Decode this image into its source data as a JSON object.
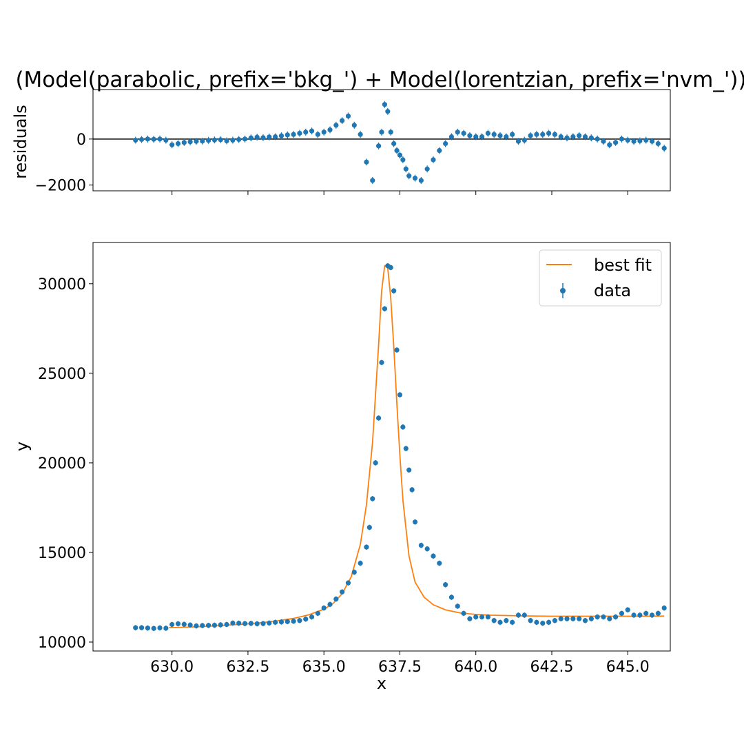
{
  "title": "(Model(parabolic, prefix='bkg_') + Model(lorentzian, prefix='nvm_'))",
  "colors": {
    "data": "#1f77b4",
    "fit": "#ff7f0e",
    "axis": "#000000"
  },
  "chart_data": [
    {
      "type": "scatter",
      "ylabel": "residuals",
      "xlim": [
        627.4,
        646.4
      ],
      "ylim": [
        -2250,
        2150
      ],
      "yticks": [
        -2000,
        0
      ],
      "ytick_labels": [
        "−2000",
        "0"
      ],
      "xticks": [
        630.0,
        632.5,
        635.0,
        637.5,
        640.0,
        642.5,
        645.0
      ],
      "xtick_labels_visible": false,
      "zero_line": 0,
      "series": [
        {
          "x": [
            628.8,
            629.0,
            629.2,
            629.4,
            629.6,
            629.8,
            630.0,
            630.2,
            630.4,
            630.6,
            630.8,
            631.0,
            631.2,
            631.4,
            631.6,
            631.8,
            632.0,
            632.2,
            632.4,
            632.6,
            632.8,
            633.0,
            633.2,
            633.4,
            633.6,
            633.8,
            634.0,
            634.2,
            634.4,
            634.6,
            634.8,
            635.0,
            635.2,
            635.4,
            635.6,
            635.8,
            636.0,
            636.2,
            636.4,
            636.6,
            636.8,
            636.9,
            637.0,
            637.1,
            637.2,
            637.3,
            637.4,
            637.5,
            637.6,
            637.7,
            637.8,
            638.0,
            638.2,
            638.4,
            638.6,
            638.8,
            639.0,
            639.2,
            639.4,
            639.6,
            639.8,
            640.0,
            640.2,
            640.4,
            640.6,
            640.8,
            641.0,
            641.2,
            641.4,
            641.6,
            641.8,
            642.0,
            642.2,
            642.4,
            642.6,
            642.8,
            643.0,
            643.2,
            643.4,
            643.6,
            643.8,
            644.0,
            644.2,
            644.4,
            644.6,
            644.8,
            645.0,
            645.2,
            645.4,
            645.6,
            645.8,
            646.0,
            646.2
          ],
          "y": [
            -50,
            -20,
            0,
            -10,
            0,
            -50,
            -250,
            -200,
            -150,
            -120,
            -100,
            -90,
            -60,
            -40,
            -30,
            -80,
            -50,
            -20,
            0,
            50,
            80,
            60,
            90,
            100,
            140,
            180,
            200,
            250,
            300,
            350,
            200,
            300,
            400,
            600,
            800,
            1000,
            600,
            200,
            -1000,
            -1800,
            -300,
            300,
            1500,
            1200,
            300,
            -200,
            -500,
            -700,
            -900,
            -1300,
            -1600,
            -1700,
            -1800,
            -1300,
            -900,
            -500,
            -200,
            100,
            300,
            250,
            150,
            100,
            100,
            250,
            200,
            150,
            100,
            200,
            -100,
            -50,
            150,
            200,
            200,
            250,
            200,
            100,
            50,
            100,
            150,
            100,
            50,
            0,
            -100,
            -250,
            -150,
            0,
            -50,
            -100,
            -80,
            -50,
            -100,
            -200,
            -400
          ]
        }
      ]
    },
    {
      "type": "scatter",
      "xlabel": "x",
      "ylabel": "y",
      "xlim": [
        627.4,
        646.4
      ],
      "ylim": [
        9500,
        32300
      ],
      "xticks": [
        630.0,
        632.5,
        635.0,
        637.5,
        640.0,
        642.5,
        645.0
      ],
      "xtick_labels": [
        "630.0",
        "632.5",
        "635.0",
        "637.5",
        "640.0",
        "642.5",
        "645.0"
      ],
      "yticks": [
        10000,
        15000,
        20000,
        25000,
        30000
      ],
      "ytick_labels": [
        "10000",
        "15000",
        "20000",
        "25000",
        "30000"
      ],
      "legend_position": "top-right",
      "legend": [
        {
          "label": "best fit",
          "kind": "line"
        },
        {
          "label": "data",
          "kind": "errorbar"
        }
      ],
      "series": [
        {
          "name": "best fit",
          "kind": "line",
          "x": [
            629.9,
            630.5,
            631.0,
            631.5,
            632.0,
            632.5,
            633.0,
            633.5,
            634.0,
            634.5,
            635.0,
            635.3,
            635.6,
            635.9,
            636.2,
            636.4,
            636.6,
            636.8,
            636.9,
            637.0,
            637.1,
            637.2,
            637.3,
            637.4,
            637.5,
            637.6,
            637.8,
            638.0,
            638.3,
            638.6,
            639.0,
            639.5,
            640.0,
            640.5,
            641.0,
            641.5,
            642.0,
            642.5,
            643.0,
            643.5,
            644.0,
            644.5,
            645.0,
            645.5,
            646.0,
            646.2
          ],
          "y": [
            10800,
            10830,
            10870,
            10910,
            10960,
            11020,
            11090,
            11190,
            11320,
            11520,
            11830,
            12150,
            12700,
            13650,
            15450,
            17650,
            21150,
            26600,
            29600,
            31000,
            30900,
            29200,
            26500,
            23300,
            20400,
            17900,
            14800,
            13350,
            12500,
            12080,
            11800,
            11620,
            11540,
            11500,
            11480,
            11460,
            11450,
            11440,
            11440,
            11440,
            11440,
            11440,
            11440,
            11440,
            11450,
            11450
          ]
        },
        {
          "name": "data",
          "kind": "errorbar",
          "x": [
            628.8,
            629.0,
            629.2,
            629.4,
            629.6,
            629.8,
            630.0,
            630.2,
            630.4,
            630.6,
            630.8,
            631.0,
            631.2,
            631.4,
            631.6,
            631.8,
            632.0,
            632.2,
            632.4,
            632.6,
            632.8,
            633.0,
            633.2,
            633.4,
            633.6,
            633.8,
            634.0,
            634.2,
            634.4,
            634.6,
            634.8,
            635.0,
            635.2,
            635.4,
            635.6,
            635.8,
            636.0,
            636.2,
            636.4,
            636.5,
            636.6,
            636.7,
            636.8,
            636.9,
            637.0,
            637.1,
            637.2,
            637.3,
            637.4,
            637.5,
            637.6,
            637.7,
            637.8,
            637.9,
            638.0,
            638.2,
            638.4,
            638.6,
            638.8,
            639.0,
            639.2,
            639.4,
            639.6,
            639.8,
            640.0,
            640.2,
            640.4,
            640.6,
            640.8,
            641.0,
            641.2,
            641.4,
            641.6,
            641.8,
            642.0,
            642.2,
            642.4,
            642.6,
            642.8,
            643.0,
            643.2,
            643.4,
            643.6,
            643.8,
            644.0,
            644.2,
            644.4,
            644.6,
            644.8,
            645.0,
            645.2,
            645.4,
            645.6,
            645.8,
            646.0,
            646.2
          ],
          "y": [
            10800,
            10800,
            10780,
            10760,
            10790,
            10770,
            10980,
            11020,
            10990,
            10950,
            10900,
            10920,
            10930,
            10940,
            10960,
            10980,
            11060,
            11050,
            11030,
            11040,
            11020,
            11030,
            11060,
            11100,
            11120,
            11140,
            11160,
            11200,
            11280,
            11400,
            11600,
            11900,
            12100,
            12400,
            12800,
            13300,
            13900,
            14400,
            15300,
            16400,
            18000,
            20000,
            22500,
            25600,
            28600,
            31000,
            30900,
            29600,
            26300,
            23800,
            22000,
            20800,
            19600,
            18500,
            16700,
            15400,
            15200,
            14800,
            14400,
            13200,
            12500,
            12000,
            11600,
            11300,
            11400,
            11400,
            11400,
            11200,
            11100,
            11200,
            11100,
            11500,
            11500,
            11200,
            11100,
            11050,
            11100,
            11200,
            11300,
            11300,
            11300,
            11300,
            11200,
            11300,
            11400,
            11400,
            11300,
            11400,
            11600,
            11800,
            11500,
            11500,
            11600,
            11500,
            11600,
            11900
          ],
          "yerr": 150
        }
      ]
    }
  ]
}
